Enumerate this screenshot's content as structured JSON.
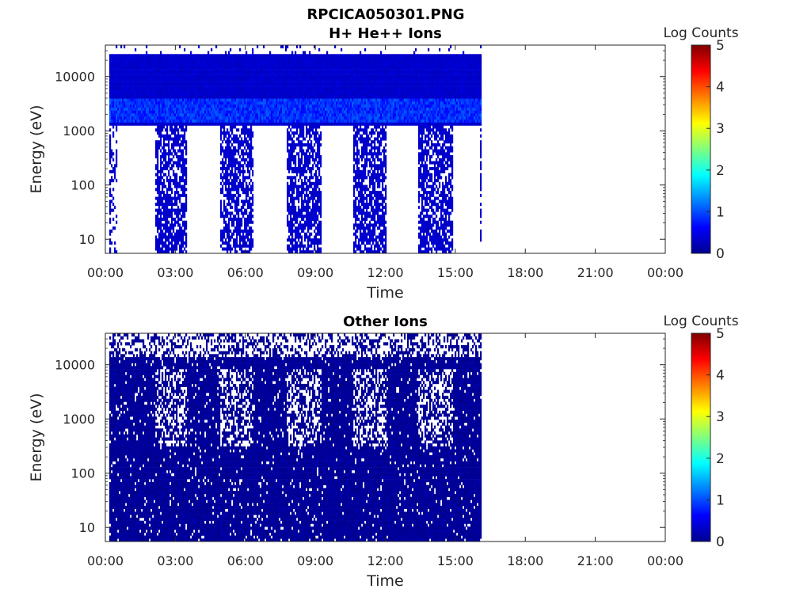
{
  "figure": {
    "filename": "RPCICA050301.PNG"
  },
  "chart_data": [
    {
      "type": "heatmap",
      "title": "H+ He++ Ions",
      "xlabel": "Time",
      "ylabel": "Energy (eV)",
      "x_ticks": [
        "00:00",
        "03:00",
        "06:00",
        "09:00",
        "12:00",
        "15:00",
        "18:00",
        "21:00",
        "00:00"
      ],
      "y_ticks": [
        "10",
        "100",
        "1000",
        "10000"
      ],
      "y_scale": "log",
      "ylim": [
        5.5,
        38000
      ],
      "xlim_hours": [
        0,
        24
      ],
      "colorbar": {
        "label": "Log Counts",
        "ticks": [
          "0",
          "1",
          "2",
          "3",
          "4",
          "5"
        ],
        "range": [
          0,
          5
        ],
        "colormap": "jet"
      },
      "data_extent_hours": [
        0.17,
        16.1
      ],
      "features": {
        "background_level": 0.3,
        "bright_band_energy_ev": [
          1500,
          4000
        ],
        "bright_band_level": 1.0,
        "gaps_below_1200ev_hours": [
          [
            0.5,
            2.1
          ],
          [
            3.45,
            4.9
          ],
          [
            6.3,
            7.75
          ],
          [
            9.25,
            10.6
          ],
          [
            12.05,
            13.4
          ],
          [
            14.85,
            16.05
          ]
        ],
        "low_energy_gap_hours": [
          [
            0.2,
            0.45
          ]
        ]
      },
      "grid": false,
      "legend": "none"
    },
    {
      "type": "heatmap",
      "title": "Other Ions",
      "xlabel": "Time",
      "ylabel": "Energy (eV)",
      "x_ticks": [
        "00:00",
        "03:00",
        "06:00",
        "09:00",
        "12:00",
        "15:00",
        "18:00",
        "21:00",
        "00:00"
      ],
      "y_ticks": [
        "10",
        "100",
        "1000",
        "10000"
      ],
      "y_scale": "log",
      "ylim": [
        5.5,
        38000
      ],
      "xlim_hours": [
        0,
        24
      ],
      "colorbar": {
        "label": "Log Counts",
        "ticks": [
          "0",
          "1",
          "2",
          "3",
          "4",
          "5"
        ],
        "range": [
          0,
          5
        ],
        "colormap": "jet"
      },
      "data_extent_hours": [
        0.17,
        16.1
      ],
      "features": {
        "background_level": 0.05,
        "sparse_patch_hours": [
          [
            2.1,
            3.45
          ],
          [
            4.9,
            6.3
          ],
          [
            7.75,
            9.25
          ],
          [
            10.6,
            12.05
          ],
          [
            13.4,
            14.85
          ]
        ],
        "sparse_patch_energy_ev": [
          300,
          8000
        ]
      },
      "grid": false,
      "legend": "none"
    }
  ]
}
